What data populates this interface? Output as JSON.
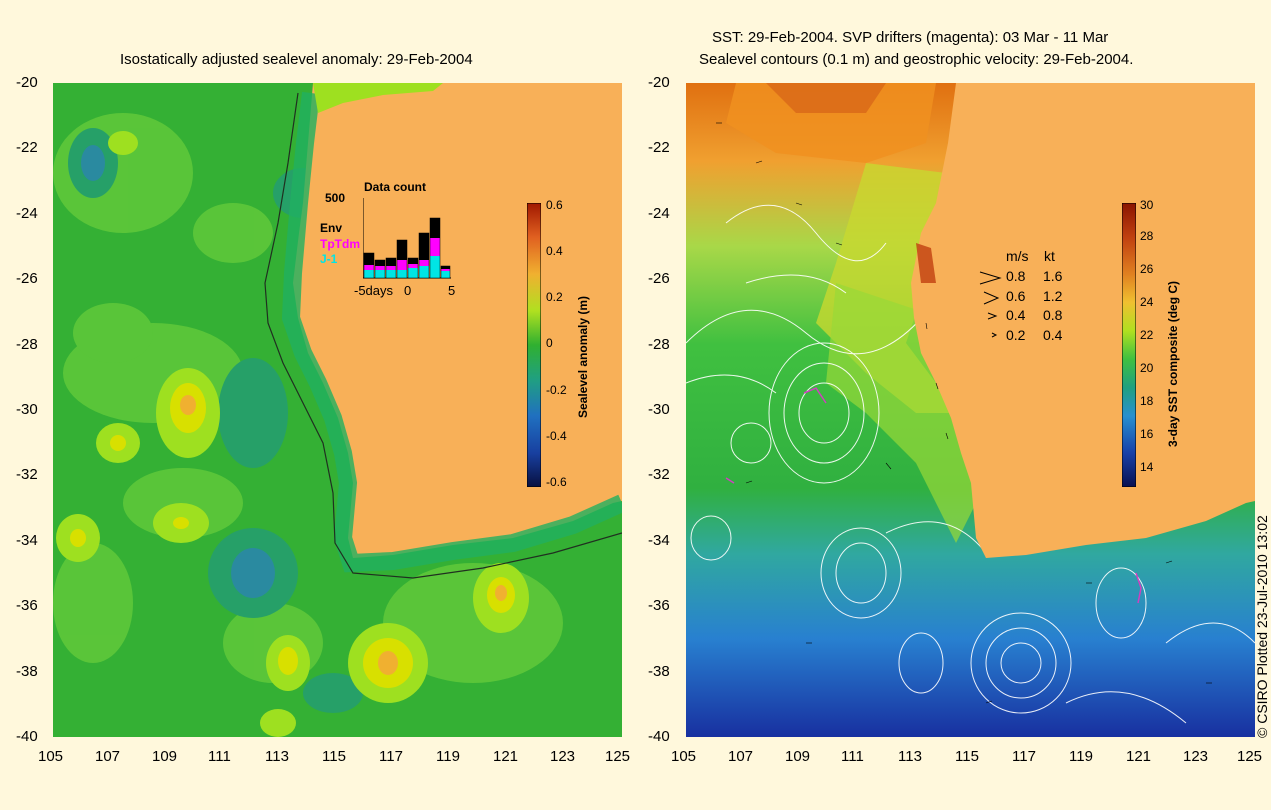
{
  "left_panel": {
    "title": "Isostatically adjusted sealevel anomaly: 29-Feb-2004",
    "colorbar": {
      "label": "Sealevel anomaly (m)",
      "ticks": [
        "0.6",
        "0.4",
        "0.2",
        "0",
        "-0.2",
        "-0.4",
        "-0.6"
      ]
    },
    "inset": {
      "title": "Data count",
      "ymax": "500",
      "series_labels": [
        "Env",
        "TpTdm",
        "J-1"
      ],
      "series_colors": [
        "#000000",
        "#ff00ff",
        "#00e5e5"
      ],
      "xticks": [
        "-5days",
        "0",
        "5"
      ]
    }
  },
  "right_panel": {
    "title_line1": "SST: 29-Feb-2004. SVP drifters (magenta): 03 Mar - 11 Mar",
    "title_line2": "Sealevel contours (0.1 m) and geostrophic velocity: 29-Feb-2004.",
    "colorbar": {
      "label": "3-day SST composite (deg C)",
      "ticks": [
        "30",
        "28",
        "26",
        "24",
        "22",
        "20",
        "18",
        "16",
        "14"
      ]
    },
    "velocity_legend": {
      "header_ms": "m/s",
      "header_kt": "kt",
      "rows": [
        {
          "ms": "0.8",
          "kt": "1.6"
        },
        {
          "ms": "0.6",
          "kt": "1.2"
        },
        {
          "ms": "0.4",
          "kt": "0.8"
        },
        {
          "ms": "0.2",
          "kt": "0.4"
        }
      ]
    }
  },
  "axes": {
    "lat_ticks": [
      "-20",
      "-22",
      "-24",
      "-26",
      "-28",
      "-30",
      "-32",
      "-34",
      "-36",
      "-38",
      "-40"
    ],
    "lon_ticks": [
      "105",
      "107",
      "109",
      "111",
      "113",
      "115",
      "117",
      "119",
      "121",
      "123",
      "125"
    ]
  },
  "copyright": "© CSIRO Plotted 23-Jul-2010 13:02",
  "colors": {
    "land": "#f8b058",
    "ocean_left": "#3cb83c",
    "background": "#fff8dc"
  }
}
